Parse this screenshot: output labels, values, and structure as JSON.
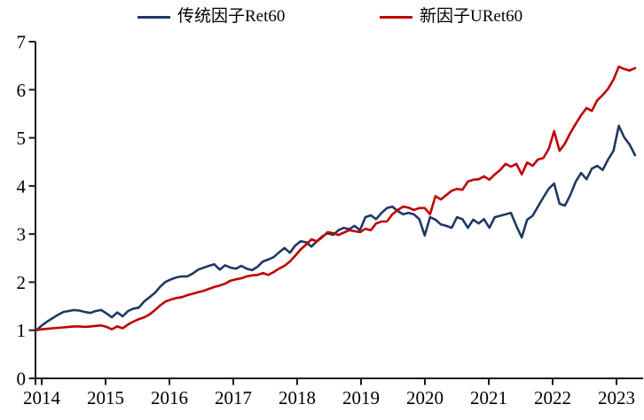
{
  "chart_data": {
    "type": "line",
    "title": "",
    "legend_position": "top",
    "grid": false,
    "background": "#ffffff",
    "x_axis": {
      "tick_labels": [
        "2014",
        "2015",
        "2016",
        "2017",
        "2018",
        "2019",
        "2020",
        "2021",
        "2022",
        "2023"
      ],
      "start": "2014-01",
      "frequency": "monthly",
      "range_years": [
        2014,
        2023.33
      ]
    },
    "y_axis": {
      "tick_labels": [
        "0",
        "1",
        "2",
        "3",
        "4",
        "5",
        "6",
        "7"
      ],
      "ticks": [
        0,
        1,
        2,
        3,
        4,
        5,
        6,
        7
      ],
      "ylim": [
        0,
        7
      ]
    },
    "legend": [
      {
        "label": "传统因子Ret60",
        "color": "#1f3864"
      },
      {
        "label": "新因子URet60",
        "color": "#c00000"
      }
    ],
    "series": [
      {
        "name": "传统因子Ret60",
        "color": "#1f3864",
        "values": [
          1.0,
          1.1,
          1.18,
          1.25,
          1.32,
          1.38,
          1.4,
          1.42,
          1.41,
          1.38,
          1.36,
          1.4,
          1.42,
          1.35,
          1.27,
          1.37,
          1.29,
          1.4,
          1.45,
          1.47,
          1.6,
          1.69,
          1.78,
          1.91,
          2.01,
          2.06,
          2.1,
          2.12,
          2.12,
          2.18,
          2.26,
          2.3,
          2.34,
          2.37,
          2.26,
          2.35,
          2.3,
          2.28,
          2.34,
          2.28,
          2.25,
          2.32,
          2.43,
          2.47,
          2.52,
          2.62,
          2.71,
          2.61,
          2.76,
          2.85,
          2.83,
          2.74,
          2.85,
          2.95,
          3.02,
          2.98,
          3.08,
          3.13,
          3.1,
          3.17,
          3.08,
          3.35,
          3.39,
          3.31,
          3.44,
          3.54,
          3.57,
          3.48,
          3.41,
          3.44,
          3.41,
          3.31,
          2.97,
          3.35,
          3.3,
          3.2,
          3.17,
          3.13,
          3.35,
          3.31,
          3.13,
          3.3,
          3.22,
          3.31,
          3.13,
          3.35,
          3.38,
          3.41,
          3.44,
          3.17,
          2.93,
          3.3,
          3.38,
          3.57,
          3.76,
          3.94,
          4.05,
          3.63,
          3.59,
          3.81,
          4.09,
          4.27,
          4.14,
          4.36,
          4.42,
          4.33,
          4.55,
          4.73,
          5.25,
          5.01,
          4.86,
          4.64
        ]
      },
      {
        "name": "新因子URet60",
        "color": "#c00000",
        "values": [
          1.0,
          1.02,
          1.03,
          1.04,
          1.05,
          1.06,
          1.07,
          1.08,
          1.08,
          1.07,
          1.08,
          1.09,
          1.1,
          1.07,
          1.02,
          1.08,
          1.04,
          1.12,
          1.18,
          1.23,
          1.27,
          1.33,
          1.42,
          1.52,
          1.6,
          1.64,
          1.67,
          1.69,
          1.73,
          1.76,
          1.79,
          1.82,
          1.86,
          1.9,
          1.93,
          1.97,
          2.03,
          2.06,
          2.08,
          2.12,
          2.14,
          2.15,
          2.19,
          2.15,
          2.21,
          2.28,
          2.34,
          2.43,
          2.55,
          2.68,
          2.78,
          2.89,
          2.85,
          2.93,
          3.04,
          3.02,
          2.98,
          3.03,
          3.08,
          3.06,
          3.04,
          3.11,
          3.08,
          3.22,
          3.26,
          3.26,
          3.41,
          3.5,
          3.57,
          3.55,
          3.5,
          3.54,
          3.54,
          3.41,
          3.79,
          3.72,
          3.81,
          3.9,
          3.94,
          3.92,
          4.09,
          4.13,
          4.14,
          4.2,
          4.13,
          4.24,
          4.33,
          4.46,
          4.4,
          4.46,
          4.24,
          4.49,
          4.42,
          4.55,
          4.58,
          4.77,
          5.14,
          4.73,
          4.88,
          5.1,
          5.29,
          5.47,
          5.62,
          5.56,
          5.78,
          5.89,
          6.02,
          6.21,
          6.48,
          6.43,
          6.4,
          6.45
        ]
      }
    ]
  },
  "colors": {
    "series_blue": "#1f3864",
    "series_red": "#c00000",
    "axis": "#1a1a1a",
    "text": "#000000",
    "background": "#ffffff"
  }
}
